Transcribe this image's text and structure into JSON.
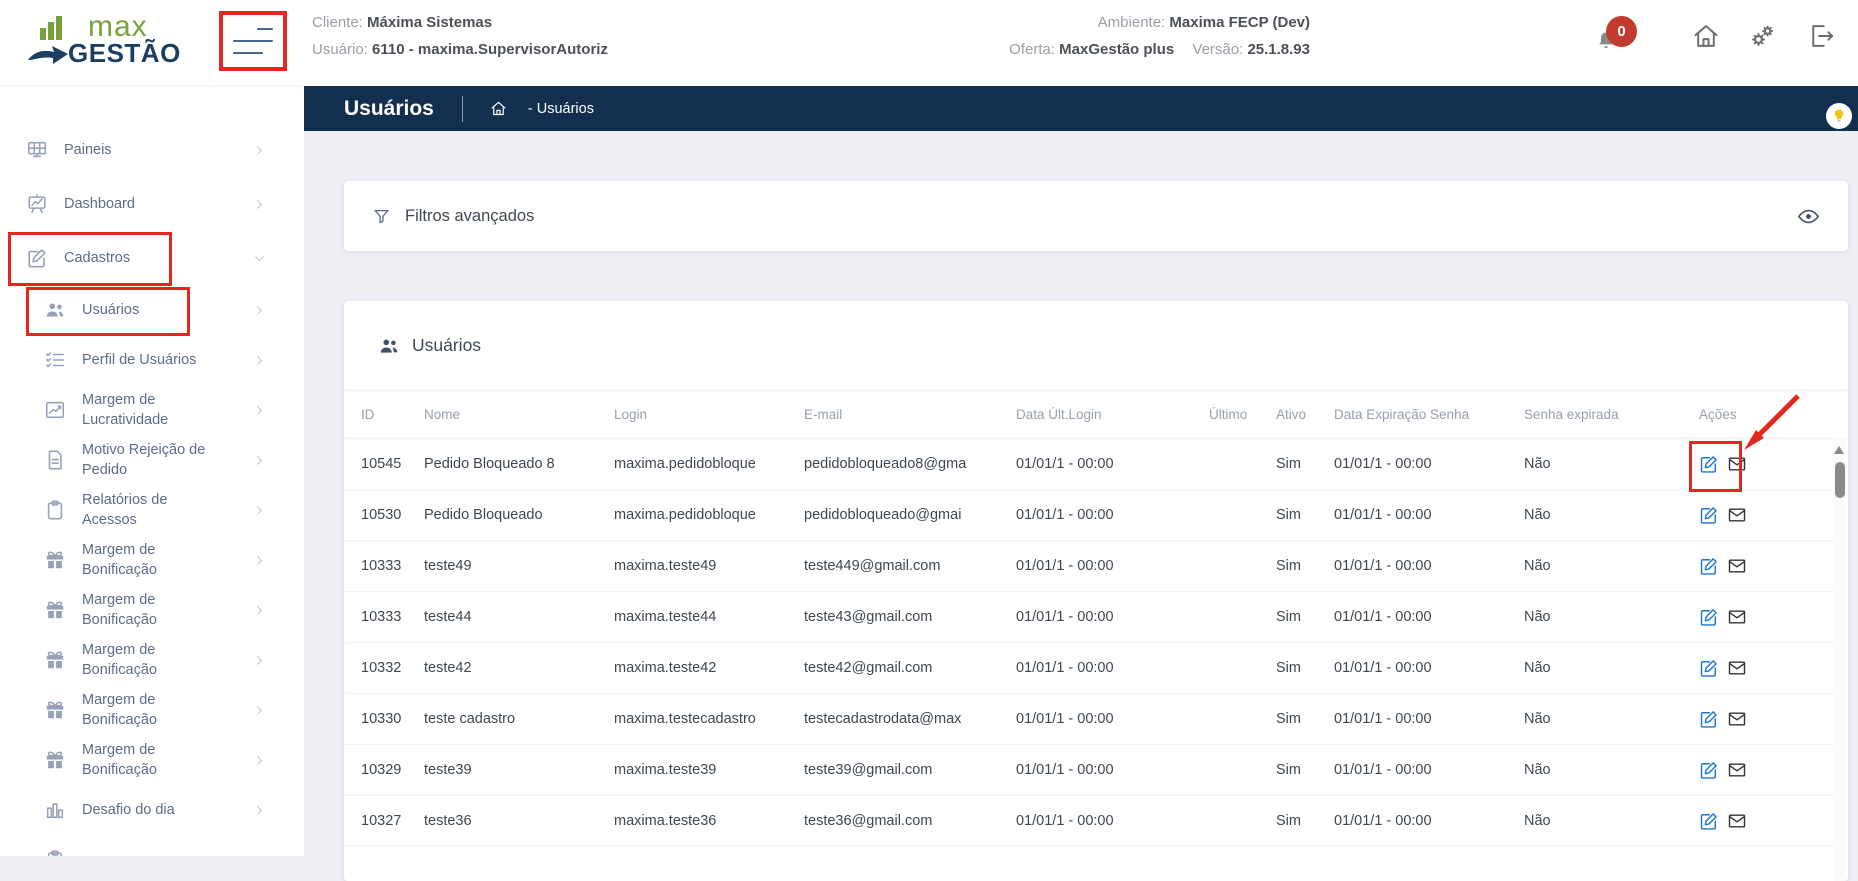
{
  "colors": {
    "titlebar_navy": "#132f4f",
    "logo_green": "#7aa23c",
    "logo_navy": "#1d3e63",
    "annotation_red": "#e5261f",
    "badge_red": "#c23b2e",
    "edit_blue": "#1976d2",
    "background": "#edeff4",
    "lightbulb_yellow": "#f0c419"
  },
  "header": {
    "logo_line1": "max",
    "logo_line2": "GESTÃO",
    "client_label": "Cliente:",
    "client_value": "Máxima Sistemas",
    "user_label": "Usuário:",
    "user_value": "6110 - maxima.SupervisorAutoriz",
    "ambiente_label": "Ambiente:",
    "ambiente_value": "Maxima FECP (Dev)",
    "oferta_label": "Oferta:",
    "oferta_value": "MaxGestão plus",
    "versao_label": "Versão:",
    "versao_value": "25.1.8.93",
    "notification_count": "0"
  },
  "titlebar": {
    "title": "Usuários",
    "breadcrumb": "- Usuários"
  },
  "sidebar": {
    "items": [
      {
        "label": "Paineis",
        "icon": "panel-grid",
        "level": 1,
        "chevron": "right",
        "annotated": false
      },
      {
        "label": "Dashboard",
        "icon": "dashboard",
        "level": 1,
        "chevron": "right",
        "annotated": false
      },
      {
        "label": "Cadastros",
        "icon": "edit-square",
        "level": 1,
        "chevron": "down",
        "annotated": true
      },
      {
        "label": "Usuários",
        "icon": "users",
        "level": 2,
        "chevron": "right",
        "annotated": true
      },
      {
        "label": "Perfil de Usuários",
        "icon": "checklist",
        "level": 2,
        "chevron": "right",
        "annotated": false
      },
      {
        "label": "Margem de Lucratividade",
        "icon": "chart-trend",
        "level": 2,
        "chevron": "right",
        "annotated": false
      },
      {
        "label": "Motivo Rejeição de Pedido",
        "icon": "document",
        "level": 2,
        "chevron": "right",
        "annotated": false
      },
      {
        "label": "Relatórios de Acessos",
        "icon": "clipboard",
        "level": 2,
        "chevron": "right",
        "annotated": false
      },
      {
        "label": "Margem de Bonificação",
        "icon": "gift",
        "level": 2,
        "chevron": "right",
        "annotated": false
      },
      {
        "label": "Margem de Bonificação",
        "icon": "gift",
        "level": 2,
        "chevron": "right",
        "annotated": false
      },
      {
        "label": "Margem de Bonificação",
        "icon": "gift",
        "level": 2,
        "chevron": "right",
        "annotated": false
      },
      {
        "label": "Margem de Bonificação",
        "icon": "gift",
        "level": 2,
        "chevron": "right",
        "annotated": false
      },
      {
        "label": "Margem de Bonificação",
        "icon": "gift",
        "level": 2,
        "chevron": "right",
        "annotated": false
      },
      {
        "label": "Desafio do dia",
        "icon": "bar-chart",
        "level": 2,
        "chevron": "right",
        "annotated": false
      },
      {
        "label": "",
        "icon": "clipboard",
        "level": 2,
        "chevron": "none",
        "annotated": false
      }
    ]
  },
  "filters": {
    "title": "Filtros avançados"
  },
  "users_card": {
    "title": "Usuários",
    "columns": [
      "ID",
      "Nome",
      "Login",
      "E-mail",
      "Data Últ.Login",
      "Último",
      "Ativo",
      "Data Expiração Senha",
      "Senha expirada",
      "Ações"
    ],
    "rows": [
      {
        "id": "10545",
        "nome": "Pedido Bloqueado 8",
        "login": "maxima.pedidobloque",
        "email": "pedidobloqueado8@gma",
        "data_ult_login": "01/01/1 - 00:00",
        "ultimo": "",
        "ativo": "Sim",
        "data_expiracao_senha": "01/01/1 - 00:00",
        "senha_expirada": "Não"
      },
      {
        "id": "10530",
        "nome": "Pedido Bloqueado",
        "login": "maxima.pedidobloque",
        "email": "pedidobloqueado@gmai",
        "data_ult_login": "01/01/1 - 00:00",
        "ultimo": "",
        "ativo": "Sim",
        "data_expiracao_senha": "01/01/1 - 00:00",
        "senha_expirada": "Não"
      },
      {
        "id": "10333",
        "nome": "teste49",
        "login": "maxima.teste49",
        "email": "teste449@gmail.com",
        "data_ult_login": "01/01/1 - 00:00",
        "ultimo": "",
        "ativo": "Sim",
        "data_expiracao_senha": "01/01/1 - 00:00",
        "senha_expirada": "Não"
      },
      {
        "id": "10333",
        "nome": "teste44",
        "login": "maxima.teste44",
        "email": "teste43@gmail.com",
        "data_ult_login": "01/01/1 - 00:00",
        "ultimo": "",
        "ativo": "Sim",
        "data_expiracao_senha": "01/01/1 - 00:00",
        "senha_expirada": "Não"
      },
      {
        "id": "10332",
        "nome": "teste42",
        "login": "maxima.teste42",
        "email": "teste42@gmail.com",
        "data_ult_login": "01/01/1 - 00:00",
        "ultimo": "",
        "ativo": "Sim",
        "data_expiracao_senha": "01/01/1 - 00:00",
        "senha_expirada": "Não"
      },
      {
        "id": "10330",
        "nome": "teste cadastro",
        "login": "maxima.testecadastro",
        "email": "testecadastrodata@max",
        "data_ult_login": "01/01/1 - 00:00",
        "ultimo": "",
        "ativo": "Sim",
        "data_expiracao_senha": "01/01/1 - 00:00",
        "senha_expirada": "Não"
      },
      {
        "id": "10329",
        "nome": "teste39",
        "login": "maxima.teste39",
        "email": "teste39@gmail.com",
        "data_ult_login": "01/01/1 - 00:00",
        "ultimo": "",
        "ativo": "Sim",
        "data_expiracao_senha": "01/01/1 - 00:00",
        "senha_expirada": "Não"
      },
      {
        "id": "10327",
        "nome": "teste36",
        "login": "maxima.teste36",
        "email": "teste36@gmail.com",
        "data_ult_login": "01/01/1 - 00:00",
        "ultimo": "",
        "ativo": "Sim",
        "data_expiracao_senha": "01/01/1 - 00:00",
        "senha_expirada": "Não"
      }
    ]
  }
}
